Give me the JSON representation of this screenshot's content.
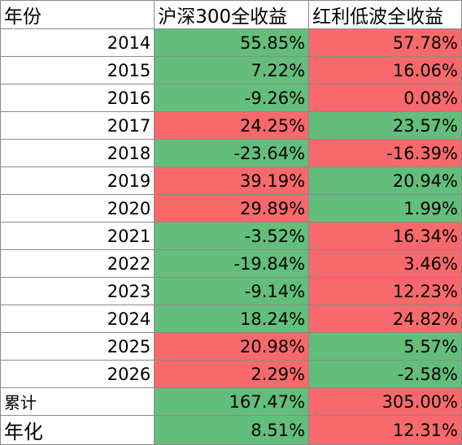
{
  "header": {
    "year": "年份",
    "csi300": "沪深300全收益",
    "dividend": "红利低波全收益"
  },
  "rows": [
    {
      "year": "2014",
      "csi300": "55.85%",
      "dividend": "57.78%",
      "csi300_color": "green",
      "dividend_color": "red"
    },
    {
      "year": "2015",
      "csi300": "7.22%",
      "dividend": "16.06%",
      "csi300_color": "green",
      "dividend_color": "red"
    },
    {
      "year": "2016",
      "csi300": "-9.26%",
      "dividend": "0.08%",
      "csi300_color": "green",
      "dividend_color": "red"
    },
    {
      "year": "2017",
      "csi300": "24.25%",
      "dividend": "23.57%",
      "csi300_color": "red",
      "dividend_color": "green"
    },
    {
      "year": "2018",
      "csi300": "-23.64%",
      "dividend": "-16.39%",
      "csi300_color": "green",
      "dividend_color": "red"
    },
    {
      "year": "2019",
      "csi300": "39.19%",
      "dividend": "20.94%",
      "csi300_color": "red",
      "dividend_color": "green"
    },
    {
      "year": "2020",
      "csi300": "29.89%",
      "dividend": "1.99%",
      "csi300_color": "red",
      "dividend_color": "green"
    },
    {
      "year": "2021",
      "csi300": "-3.52%",
      "dividend": "16.34%",
      "csi300_color": "green",
      "dividend_color": "red"
    },
    {
      "year": "2022",
      "csi300": "-19.84%",
      "dividend": "3.46%",
      "csi300_color": "green",
      "dividend_color": "red"
    },
    {
      "year": "2023",
      "csi300": "-9.14%",
      "dividend": "12.23%",
      "csi300_color": "green",
      "dividend_color": "red"
    },
    {
      "year": "2024",
      "csi300": "18.24%",
      "dividend": "24.82%",
      "csi300_color": "green",
      "dividend_color": "red"
    },
    {
      "year": "2025",
      "csi300": "20.98%",
      "dividend": "5.57%",
      "csi300_color": "red",
      "dividend_color": "green"
    },
    {
      "year": "2026",
      "csi300": "2.29%",
      "dividend": "-2.58%",
      "csi300_color": "red",
      "dividend_color": "green"
    }
  ],
  "summary": {
    "cumulative": {
      "label": "累计",
      "csi300": "167.47%",
      "dividend": "305.00%",
      "csi300_color": "green",
      "dividend_color": "red"
    },
    "annualized": {
      "label": "年化",
      "csi300": "8.51%",
      "dividend": "12.31%",
      "csi300_color": "green",
      "dividend_color": "red"
    }
  },
  "colors": {
    "green": "#63be7b",
    "red": "#f8696b",
    "border": "#8a8a8a"
  }
}
